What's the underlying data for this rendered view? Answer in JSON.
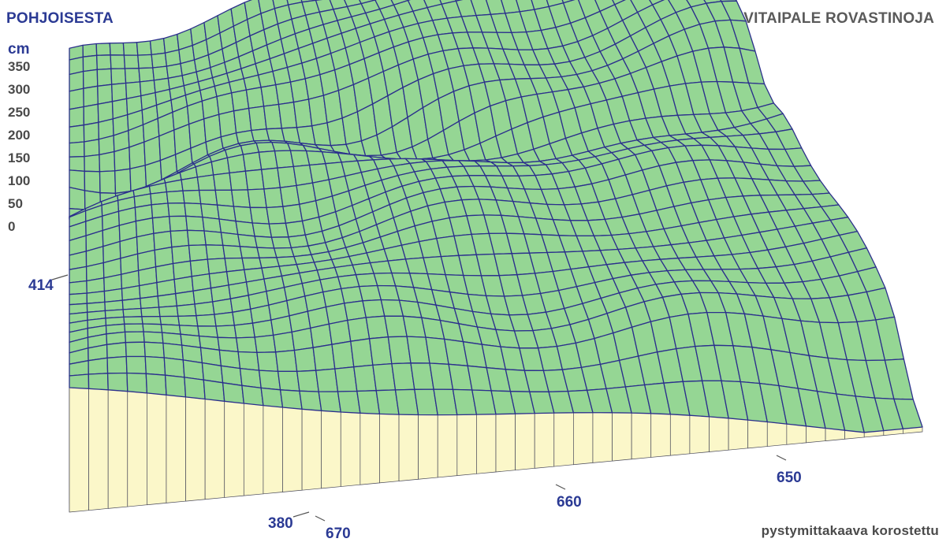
{
  "direction_label": "POHJOISESTA",
  "title": "SAVITAIPALE ROVASTINOJA",
  "note": "pystymittakaava korostettu",
  "chart_data": {
    "type": "surface",
    "z_unit": "cm",
    "z_ticks": [
      "350",
      "300",
      "250",
      "200",
      "150",
      "100",
      "50",
      "0"
    ],
    "y_ticks": [
      "414",
      "380"
    ],
    "x_ticks": [
      "670",
      "660",
      "650"
    ],
    "ylim": [
      380,
      414
    ],
    "xlim": [
      670,
      646
    ],
    "zlim": [
      0,
      350
    ],
    "grid": true,
    "colors": {
      "surface": "#95d694",
      "mesh": "#2b2f8c",
      "wall": "#fbf7c9",
      "wall_line": "#4a4a5a",
      "labels": "#2b3a94"
    },
    "description": "3D terrain surface with wireframe mesh, elevation exaggerated; river channel meanders across the middle of the surface"
  }
}
